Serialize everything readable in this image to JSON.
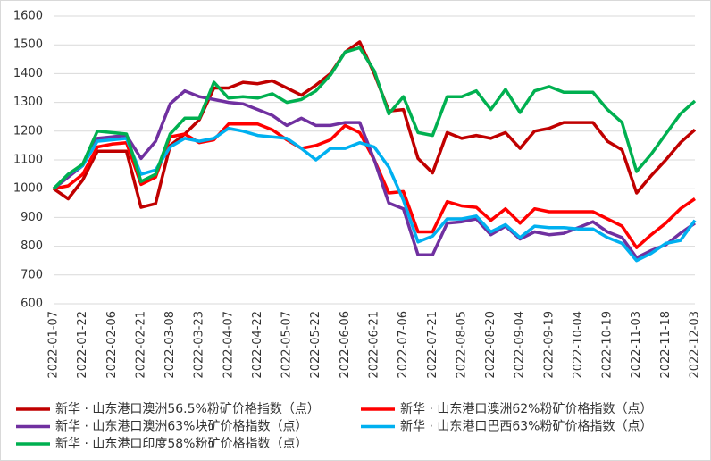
{
  "chart_data": {
    "type": "line",
    "categories": [
      "2022-01-07",
      null,
      "2022-01-22",
      null,
      "2022-02-06",
      null,
      "2022-02-21",
      null,
      "2022-03-08",
      null,
      "2022-03-23",
      null,
      "2022-04-07",
      null,
      "2022-04-22",
      null,
      "2022-05-07",
      null,
      "2022-05-22",
      null,
      "2022-06-06",
      null,
      "2022-06-21",
      null,
      "2022-07-06",
      null,
      "2022-07-21",
      null,
      "2022-08-05",
      null,
      "2022-08-20",
      null,
      "2022-09-04",
      null,
      "2022-09-19",
      null,
      "2022-10-04",
      null,
      "2022-10-19",
      null,
      "2022-11-03",
      null,
      "2022-11-18",
      null,
      "2022-12-03"
    ],
    "series": [
      {
        "name": "新华 · 山东港口澳洲56.5%粉矿价格指数（点）",
        "color": "#c00000",
        "values": [
          1000,
          965,
          1030,
          1130,
          1130,
          1130,
          935,
          948,
          1150,
          1190,
          1240,
          1350,
          1350,
          1370,
          1365,
          1375,
          1350,
          1325,
          1360,
          1400,
          1475,
          1510,
          1400,
          1270,
          1275,
          1105,
          1055,
          1195,
          1175,
          1185,
          1175,
          1195,
          1140,
          1200,
          1210,
          1230,
          1230,
          1230,
          1165,
          1135,
          985,
          1045,
          1100,
          1160,
          1205
        ]
      },
      {
        "name": "新华 · 山东港口澳洲62%粉矿价格指数（点）",
        "color": "#ff0000",
        "values": [
          1000,
          1010,
          1050,
          1145,
          1155,
          1160,
          1015,
          1040,
          1180,
          1190,
          1160,
          1170,
          1225,
          1225,
          1225,
          1205,
          1170,
          1140,
          1150,
          1170,
          1220,
          1195,
          1100,
          985,
          990,
          850,
          850,
          955,
          940,
          935,
          890,
          930,
          880,
          930,
          920,
          920,
          920,
          920,
          895,
          870,
          795,
          840,
          880,
          930,
          965
        ]
      },
      {
        "name": "新华 · 山东港口澳洲63%块矿价格指数（点）",
        "color": "#7030a0",
        "values": [
          1000,
          1040,
          1080,
          1175,
          1180,
          1185,
          1105,
          1165,
          1295,
          1340,
          1320,
          1310,
          1300,
          1295,
          1275,
          1255,
          1220,
          1245,
          1220,
          1220,
          1230,
          1230,
          1100,
          950,
          930,
          770,
          770,
          880,
          885,
          895,
          840,
          870,
          825,
          850,
          840,
          845,
          865,
          885,
          850,
          830,
          760,
          785,
          805,
          845,
          880
        ]
      },
      {
        "name": "新华 · 山东港口巴西63%粉矿价格指数（点）",
        "color": "#00b0f0",
        "values": [
          1000,
          1050,
          1080,
          1165,
          1170,
          1175,
          1050,
          1065,
          1145,
          1175,
          1165,
          1175,
          1210,
          1200,
          1185,
          1180,
          1175,
          1140,
          1100,
          1140,
          1140,
          1160,
          1145,
          1075,
          960,
          815,
          835,
          895,
          895,
          905,
          850,
          875,
          830,
          870,
          865,
          865,
          860,
          860,
          830,
          810,
          750,
          775,
          810,
          820,
          890
        ]
      },
      {
        "name": "新华 · 山东港口印度58%粉矿价格指数（点）",
        "color": "#00b050",
        "values": [
          1000,
          1050,
          1085,
          1200,
          1195,
          1190,
          1025,
          1050,
          1190,
          1245,
          1245,
          1370,
          1315,
          1320,
          1315,
          1330,
          1300,
          1310,
          1340,
          1395,
          1475,
          1490,
          1410,
          1260,
          1320,
          1195,
          1185,
          1320,
          1320,
          1340,
          1275,
          1345,
          1265,
          1340,
          1355,
          1335,
          1335,
          1335,
          1275,
          1230,
          1060,
          1120,
          1190,
          1260,
          1305
        ]
      }
    ],
    "ylim": [
      600,
      1600
    ],
    "yticks": [
      600,
      700,
      800,
      900,
      1000,
      1100,
      1200,
      1300,
      1400,
      1500,
      1600
    ],
    "grid": true
  }
}
